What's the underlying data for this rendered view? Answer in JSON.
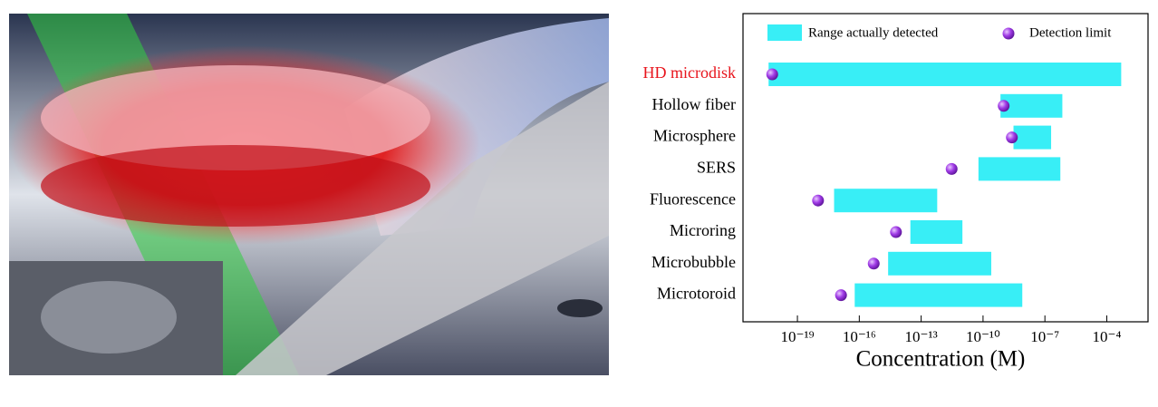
{
  "chart_data": {
    "type": "range-bar",
    "xlabel": "Concentration (M)",
    "xscale": "log",
    "xlim": [
      2.3e-22,
      0.01
    ],
    "xticks": [
      {
        "value": 1e-19,
        "label": "10⁻¹⁹"
      },
      {
        "value": 1e-16,
        "label": "10⁻¹⁶"
      },
      {
        "value": 1e-13,
        "label": "10⁻¹³"
      },
      {
        "value": 1e-10,
        "label": "10⁻¹⁰"
      },
      {
        "value": 1e-07,
        "label": "10⁻⁷"
      },
      {
        "value": 0.0001,
        "label": "10⁻⁴"
      }
    ],
    "categories": [
      "HD microdisk",
      "Hollow fiber",
      "Microsphere",
      "SERS",
      "Fluorescence",
      "Microring",
      "Microbubble",
      "Microtoroid"
    ],
    "category_colors": [
      "#e8141c",
      "#000000",
      "#000000",
      "#000000",
      "#000000",
      "#000000",
      "#000000",
      "#000000"
    ],
    "legend": "top",
    "series": [
      {
        "name": "Range actually detected",
        "color": "#38eef6",
        "low": [
          4e-21,
          7e-10,
          3e-09,
          6e-11,
          6e-18,
          3e-14,
          2.5e-15,
          6e-17
        ],
        "high": [
          0.0005,
          7e-07,
          2e-07,
          5.6e-07,
          6e-13,
          1e-11,
          2.5e-10,
          8e-09
        ]
      },
      {
        "name": "Detection limit",
        "color": "#a03be6",
        "values": [
          6e-21,
          1e-09,
          2.5e-09,
          3e-12,
          1e-18,
          6e-15,
          5e-16,
          1.3e-17
        ]
      }
    ]
  }
}
